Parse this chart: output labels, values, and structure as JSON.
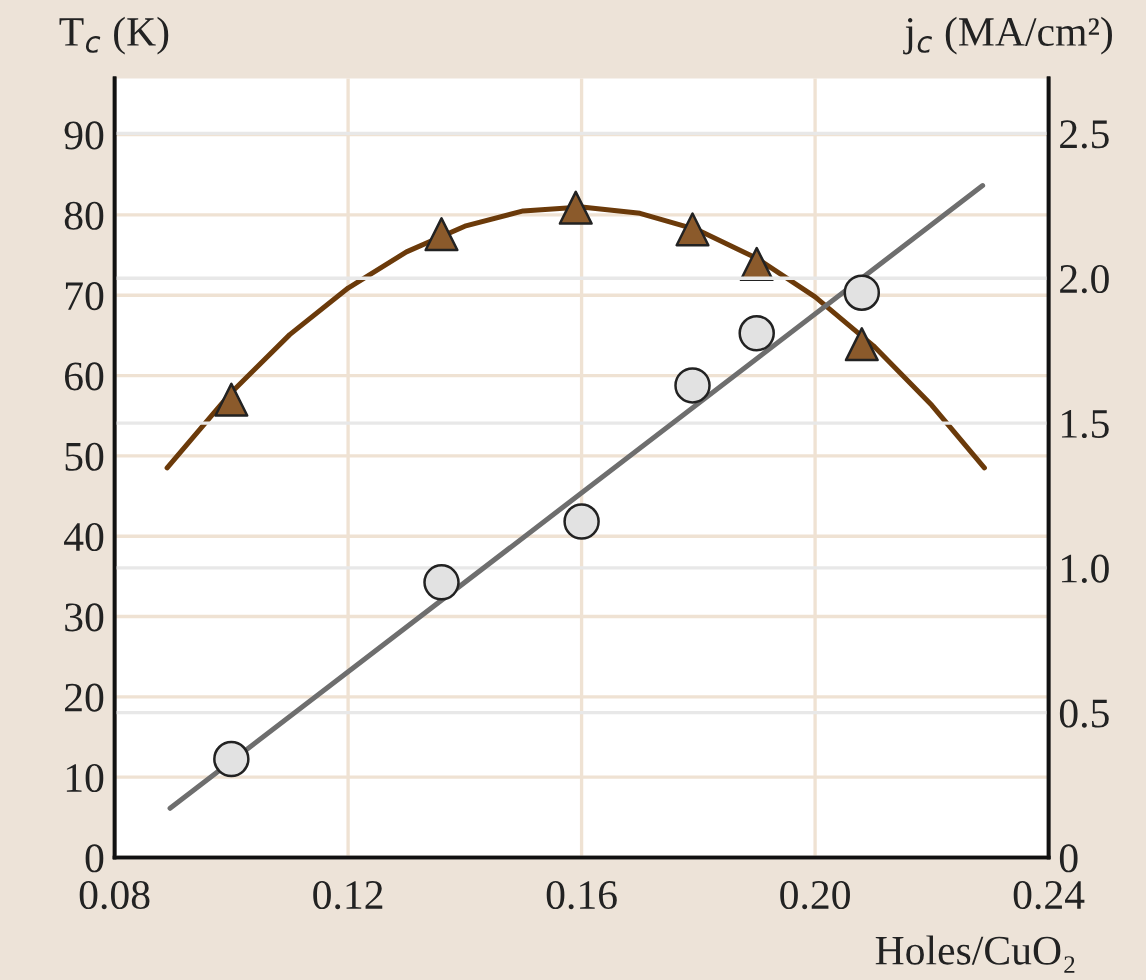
{
  "chart_data": {
    "type": "scatter",
    "xlabel": "Holes/CuO₂",
    "ylabel": "T$_{c}$ (K)",
    "y2label": "j$_{c}$ (MA/cm²)",
    "xlim": [
      0.08,
      0.24
    ],
    "xticks": [
      0.08,
      0.12,
      0.16,
      {
        "value": 0.2,
        "label": "0.20"
      },
      0.24
    ],
    "ylim": [
      0,
      97
    ],
    "yticks": [
      0,
      10,
      20,
      30,
      40,
      50,
      60,
      70,
      80,
      90
    ],
    "y2lim": [
      0,
      2.69
    ],
    "y2ticks": [
      0,
      0.5,
      {
        "value": 1,
        "label": "1.0"
      },
      1.5,
      {
        "value": 2,
        "label": "2.0"
      },
      2.5
    ],
    "grid": true,
    "legend": false,
    "series": [
      {
        "type": "line",
        "color": "#6b3a0a",
        "marker": "none",
        "x": [
          0.089,
          0.1,
          0.11,
          0.12,
          0.13,
          0.14,
          0.15,
          0.16,
          0.17,
          0.18,
          0.19,
          0.2,
          0.21,
          0.22,
          0.229
        ],
        "values": [
          48.5,
          57.9,
          65.1,
          70.9,
          75.4,
          78.6,
          80.5,
          81,
          80.2,
          78.1,
          74.6,
          69.8,
          63.7,
          56.3,
          48.5
        ]
      },
      {
        "color": "#8b5a2b",
        "marker": "triangle",
        "x": [
          0.1,
          0.136,
          0.159,
          0.179,
          0.19,
          0.208
        ],
        "values": [
          57,
          77.6,
          80.9,
          78.2,
          73.9,
          63.9
        ]
      },
      {
        "type": "line",
        "axis": "y2",
        "color": "#6e6e6e",
        "marker": "none",
        "x": [
          0.0895,
          0.2287
        ],
        "values": [
          0.17,
          2.32
        ]
      },
      {
        "axis": "y2",
        "color": "#e2e2e2",
        "marker": "circle",
        "x": [
          0.1,
          0.136,
          0.16,
          0.179,
          0.19,
          0.208
        ],
        "values": [
          0.34,
          0.95,
          1.16,
          1.63,
          1.81,
          1.95
        ]
      }
    ]
  }
}
